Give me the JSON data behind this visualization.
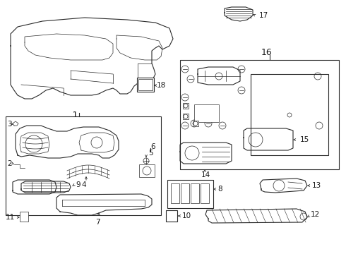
{
  "bg_color": "#ffffff",
  "line_color": "#2a2a2a",
  "label_color": "#1a1a1a",
  "label_fontsize": 7.5,
  "fig_width": 4.9,
  "fig_height": 3.6,
  "dpi": 100
}
